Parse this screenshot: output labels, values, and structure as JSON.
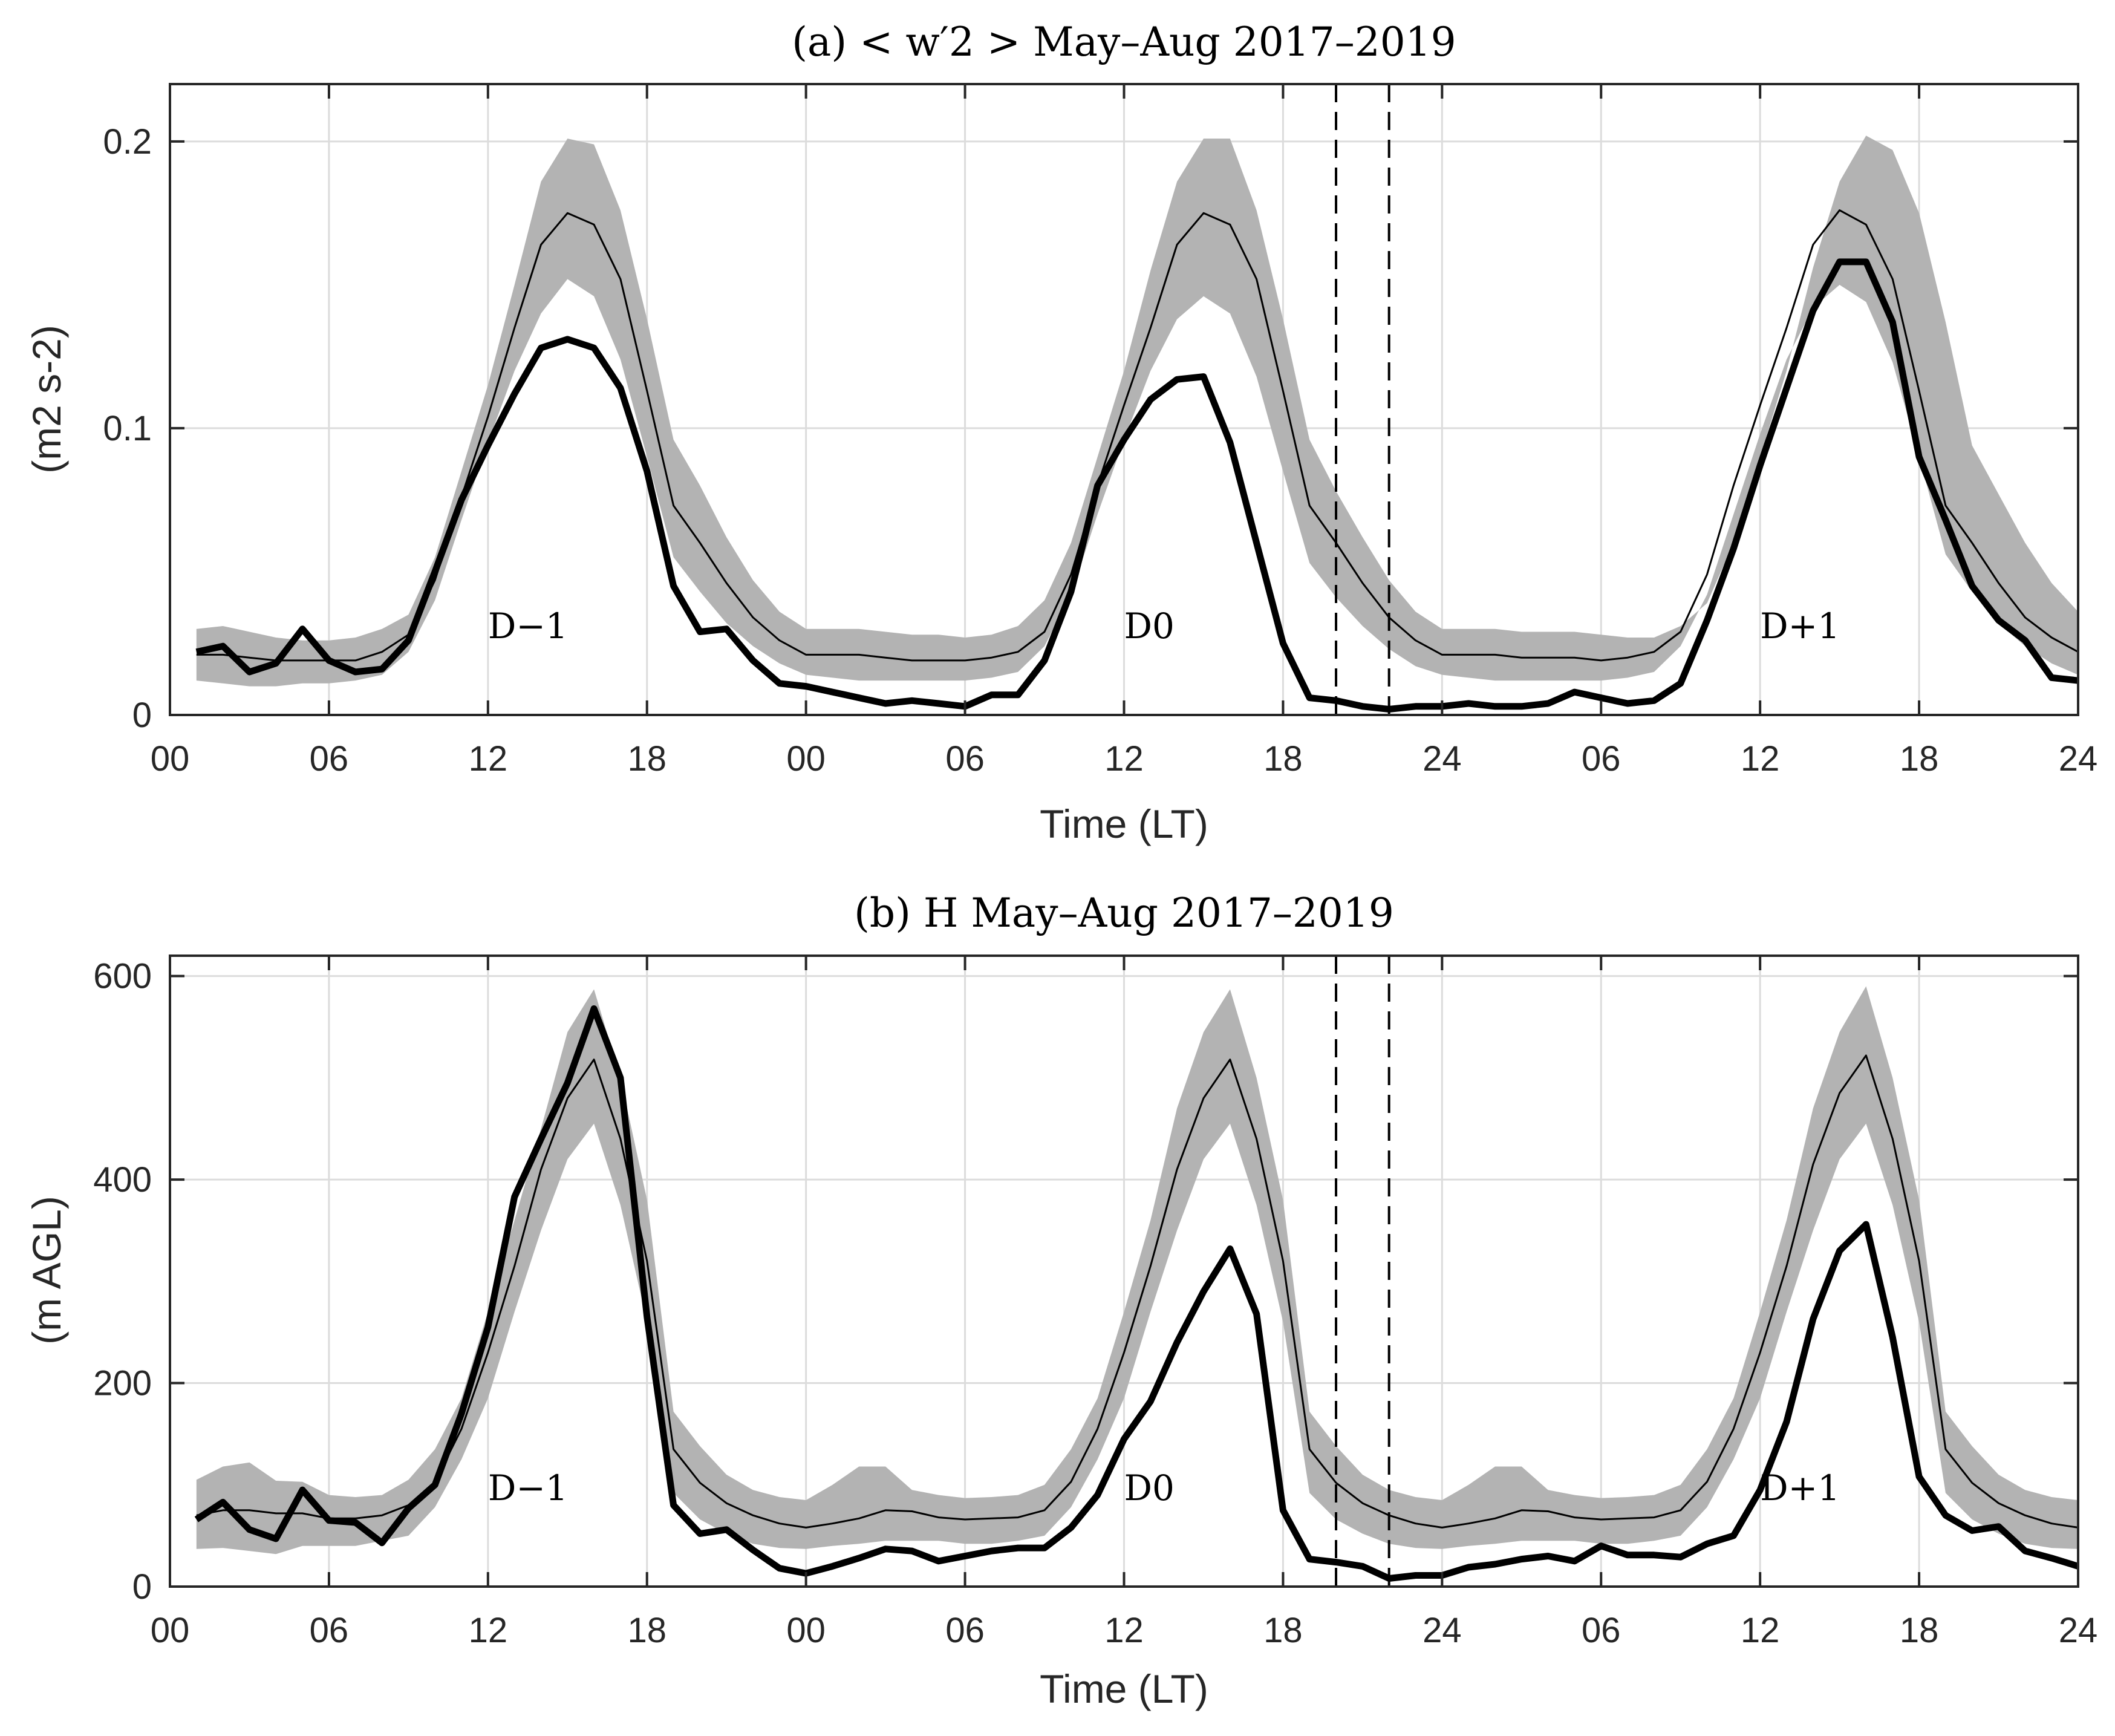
{
  "colors": {
    "band": "#b3b3b3",
    "grid": "#dcdcdc",
    "line": "#000000"
  },
  "chart_data": [
    {
      "type": "line",
      "title": "(a) < w′2 > May–Aug 2017–2019",
      "xlabel": "Time (LT)",
      "ylabel": "(m2 s-2)",
      "xlim": [
        0,
        72
      ],
      "ylim": [
        0,
        0.22
      ],
      "grid": true,
      "xtick_values": [
        0,
        6,
        12,
        18,
        24,
        30,
        36,
        42,
        48,
        54,
        60,
        66,
        72
      ],
      "xtick_labels": [
        "00",
        "06",
        "12",
        "18",
        "00",
        "06",
        "12",
        "18",
        "24",
        "06",
        "12",
        "18",
        "24"
      ],
      "ytick_values": [
        0,
        0.1,
        0.2
      ],
      "ytick_labels": [
        "0",
        "0.1",
        "0.2"
      ],
      "vlines_dashed": [
        44,
        46
      ],
      "day_labels": [
        {
          "x": 12,
          "y": 0.031,
          "text": "D−1"
        },
        {
          "x": 36,
          "y": 0.031,
          "text": "D0"
        },
        {
          "x": 60,
          "y": 0.031,
          "text": "D+1"
        }
      ],
      "x": [
        1,
        2,
        3,
        4,
        5,
        6,
        7,
        8,
        9,
        10,
        11,
        12,
        13,
        14,
        15,
        16,
        17,
        18,
        19,
        20,
        21,
        22,
        23,
        24,
        25,
        26,
        27,
        28,
        29,
        30,
        31,
        32,
        33,
        34,
        35,
        36,
        37,
        38,
        39,
        40,
        41,
        42,
        43,
        44,
        45,
        46,
        47,
        48,
        49,
        50,
        51,
        52,
        53,
        54,
        55,
        56,
        57,
        58,
        59,
        60,
        61,
        62,
        63,
        64,
        65,
        66,
        67,
        68,
        69,
        70,
        71,
        72
      ],
      "series": [
        {
          "name": "climatology_upper",
          "role": "band_upper",
          "values": [
            0.03,
            0.031,
            0.029,
            0.027,
            0.026,
            0.026,
            0.027,
            0.03,
            0.035,
            0.055,
            0.085,
            0.115,
            0.15,
            0.186,
            0.201,
            0.199,
            0.176,
            0.138,
            0.096,
            0.08,
            0.062,
            0.047,
            0.036,
            0.03,
            0.03,
            0.03,
            0.029,
            0.028,
            0.028,
            0.027,
            0.028,
            0.031,
            0.04,
            0.06,
            0.09,
            0.12,
            0.155,
            0.186,
            0.201,
            0.201,
            0.176,
            0.138,
            0.096,
            0.078,
            0.062,
            0.047,
            0.036,
            0.03,
            0.03,
            0.03,
            0.029,
            0.029,
            0.029,
            0.028,
            0.027,
            0.027,
            0.031,
            0.039,
            0.06,
            0.09,
            0.12,
            0.156,
            0.186,
            0.202,
            0.197,
            0.175,
            0.137,
            0.094,
            0.077,
            0.06,
            0.046,
            0.036
          ]
        },
        {
          "name": "climatology_lower",
          "role": "band_lower",
          "values": [
            0.012,
            0.011,
            0.01,
            0.01,
            0.011,
            0.011,
            0.012,
            0.014,
            0.022,
            0.04,
            0.068,
            0.095,
            0.12,
            0.14,
            0.152,
            0.146,
            0.124,
            0.09,
            0.055,
            0.043,
            0.032,
            0.024,
            0.018,
            0.014,
            0.013,
            0.012,
            0.012,
            0.012,
            0.012,
            0.012,
            0.013,
            0.015,
            0.024,
            0.042,
            0.07,
            0.096,
            0.12,
            0.138,
            0.146,
            0.14,
            0.118,
            0.085,
            0.053,
            0.041,
            0.031,
            0.023,
            0.017,
            0.014,
            0.013,
            0.012,
            0.012,
            0.012,
            0.012,
            0.012,
            0.013,
            0.015,
            0.024,
            0.042,
            0.07,
            0.098,
            0.124,
            0.142,
            0.15,
            0.144,
            0.123,
            0.09,
            0.056,
            0.043,
            0.032,
            0.024,
            0.018,
            0.014
          ]
        },
        {
          "name": "climatology_mean",
          "role": "thin",
          "values": [
            0.021,
            0.021,
            0.02,
            0.019,
            0.019,
            0.019,
            0.019,
            0.022,
            0.028,
            0.047,
            0.076,
            0.104,
            0.135,
            0.164,
            0.175,
            0.171,
            0.152,
            0.113,
            0.073,
            0.06,
            0.046,
            0.034,
            0.026,
            0.021,
            0.021,
            0.021,
            0.02,
            0.019,
            0.019,
            0.019,
            0.02,
            0.022,
            0.029,
            0.049,
            0.08,
            0.108,
            0.135,
            0.164,
            0.175,
            0.171,
            0.152,
            0.113,
            0.073,
            0.06,
            0.046,
            0.034,
            0.026,
            0.021,
            0.021,
            0.021,
            0.02,
            0.02,
            0.02,
            0.019,
            0.02,
            0.022,
            0.029,
            0.049,
            0.08,
            0.108,
            0.135,
            0.164,
            0.176,
            0.171,
            0.152,
            0.113,
            0.073,
            0.06,
            0.046,
            0.034,
            0.027,
            0.022
          ]
        },
        {
          "name": "event",
          "role": "thick",
          "values": [
            0.022,
            0.024,
            0.015,
            0.018,
            0.03,
            0.019,
            0.015,
            0.016,
            0.026,
            0.05,
            0.075,
            0.094,
            0.112,
            0.128,
            0.131,
            0.128,
            0.114,
            0.085,
            0.045,
            0.029,
            0.03,
            0.019,
            0.011,
            0.01,
            0.008,
            0.006,
            0.004,
            0.005,
            0.004,
            0.003,
            0.007,
            0.007,
            0.019,
            0.043,
            0.08,
            0.096,
            0.11,
            0.117,
            0.118,
            0.095,
            0.06,
            0.025,
            0.006,
            0.005,
            0.003,
            0.002,
            0.003,
            0.003,
            0.004,
            0.003,
            0.003,
            0.004,
            0.008,
            0.006,
            0.004,
            0.005,
            0.011,
            0.033,
            0.058,
            0.087,
            0.114,
            0.141,
            0.158,
            0.158,
            0.137,
            0.09,
            0.068,
            0.045,
            0.033,
            0.026,
            0.013,
            0.012
          ]
        }
      ]
    },
    {
      "type": "line",
      "title": "(b) H May–Aug 2017–2019",
      "xlabel": "Time (LT)",
      "ylabel": "(m AGL)",
      "xlim": [
        0,
        72
      ],
      "ylim": [
        0,
        620
      ],
      "grid": true,
      "xtick_values": [
        0,
        6,
        12,
        18,
        24,
        30,
        36,
        42,
        48,
        54,
        60,
        66,
        72
      ],
      "xtick_labels": [
        "00",
        "06",
        "12",
        "18",
        "00",
        "06",
        "12",
        "18",
        "24",
        "06",
        "12",
        "18",
        "24"
      ],
      "ytick_values": [
        0,
        200,
        400,
        600
      ],
      "ytick_labels": [
        "0",
        "200",
        "400",
        "600"
      ],
      "vlines_dashed": [
        44,
        46
      ],
      "day_labels": [
        {
          "x": 12,
          "y": 97,
          "text": "D−1"
        },
        {
          "x": 36,
          "y": 97,
          "text": "D0"
        },
        {
          "x": 60,
          "y": 97,
          "text": "D+1"
        }
      ],
      "x": [
        1,
        2,
        3,
        4,
        5,
        6,
        7,
        8,
        9,
        10,
        11,
        12,
        13,
        14,
        15,
        16,
        17,
        18,
        19,
        20,
        21,
        22,
        23,
        24,
        25,
        26,
        27,
        28,
        29,
        30,
        31,
        32,
        33,
        34,
        35,
        36,
        37,
        38,
        39,
        40,
        41,
        42,
        43,
        44,
        45,
        46,
        47,
        48,
        49,
        50,
        51,
        52,
        53,
        54,
        55,
        56,
        57,
        58,
        59,
        60,
        61,
        62,
        63,
        64,
        65,
        66,
        67,
        68,
        69,
        70,
        71,
        72
      ],
      "series": [
        {
          "name": "climatology_upper",
          "role": "band_upper",
          "values": [
            105,
            118,
            122,
            104,
            103,
            90,
            88,
            90,
            105,
            135,
            185,
            270,
            360,
            450,
            545,
            587,
            500,
            380,
            172,
            138,
            110,
            95,
            88,
            85,
            100,
            118,
            118,
            95,
            90,
            87,
            88,
            90,
            100,
            135,
            185,
            270,
            360,
            470,
            545,
            587,
            500,
            380,
            172,
            138,
            110,
            95,
            88,
            85,
            100,
            118,
            118,
            95,
            90,
            87,
            88,
            90,
            100,
            135,
            185,
            270,
            360,
            470,
            545,
            590,
            500,
            380,
            172,
            138,
            110,
            95,
            88,
            85
          ]
        },
        {
          "name": "climatology_lower",
          "role": "band_lower",
          "values": [
            37,
            38,
            35,
            32,
            40,
            40,
            40,
            45,
            50,
            78,
            125,
            185,
            270,
            350,
            420,
            455,
            375,
            260,
            92,
            66,
            52,
            42,
            38,
            37,
            40,
            42,
            45,
            45,
            45,
            42,
            42,
            45,
            50,
            78,
            125,
            185,
            270,
            350,
            420,
            455,
            375,
            260,
            92,
            66,
            52,
            42,
            38,
            37,
            40,
            42,
            45,
            45,
            45,
            42,
            42,
            45,
            50,
            78,
            125,
            185,
            270,
            350,
            420,
            455,
            375,
            260,
            92,
            66,
            52,
            42,
            38,
            37
          ]
        },
        {
          "name": "climatology_mean",
          "role": "thin",
          "values": [
            70,
            75,
            75,
            72,
            72,
            67,
            67,
            70,
            80,
            103,
            155,
            230,
            315,
            410,
            480,
            518,
            440,
            320,
            135,
            102,
            82,
            70,
            62,
            58,
            62,
            67,
            75,
            74,
            68,
            66,
            67,
            68,
            75,
            103,
            155,
            230,
            315,
            410,
            480,
            518,
            440,
            320,
            135,
            102,
            82,
            70,
            62,
            58,
            62,
            67,
            75,
            74,
            68,
            66,
            67,
            68,
            75,
            103,
            155,
            230,
            315,
            415,
            485,
            522,
            440,
            320,
            135,
            102,
            82,
            70,
            62,
            58
          ]
        },
        {
          "name": "event",
          "role": "thick",
          "values": [
            66,
            83,
            56,
            47,
            95,
            65,
            63,
            43,
            77,
            100,
            170,
            255,
            383,
            440,
            495,
            568,
            500,
            265,
            80,
            52,
            56,
            36,
            18,
            13,
            20,
            28,
            37,
            35,
            25,
            30,
            35,
            38,
            38,
            58,
            90,
            145,
            182,
            240,
            290,
            332,
            268,
            75,
            27,
            24,
            20,
            8,
            11,
            11,
            19,
            22,
            27,
            30,
            25,
            40,
            31,
            31,
            29,
            42,
            50,
            95,
            162,
            263,
            330,
            356,
            245,
            108,
            70,
            55,
            59,
            35,
            28,
            20
          ]
        }
      ]
    }
  ]
}
